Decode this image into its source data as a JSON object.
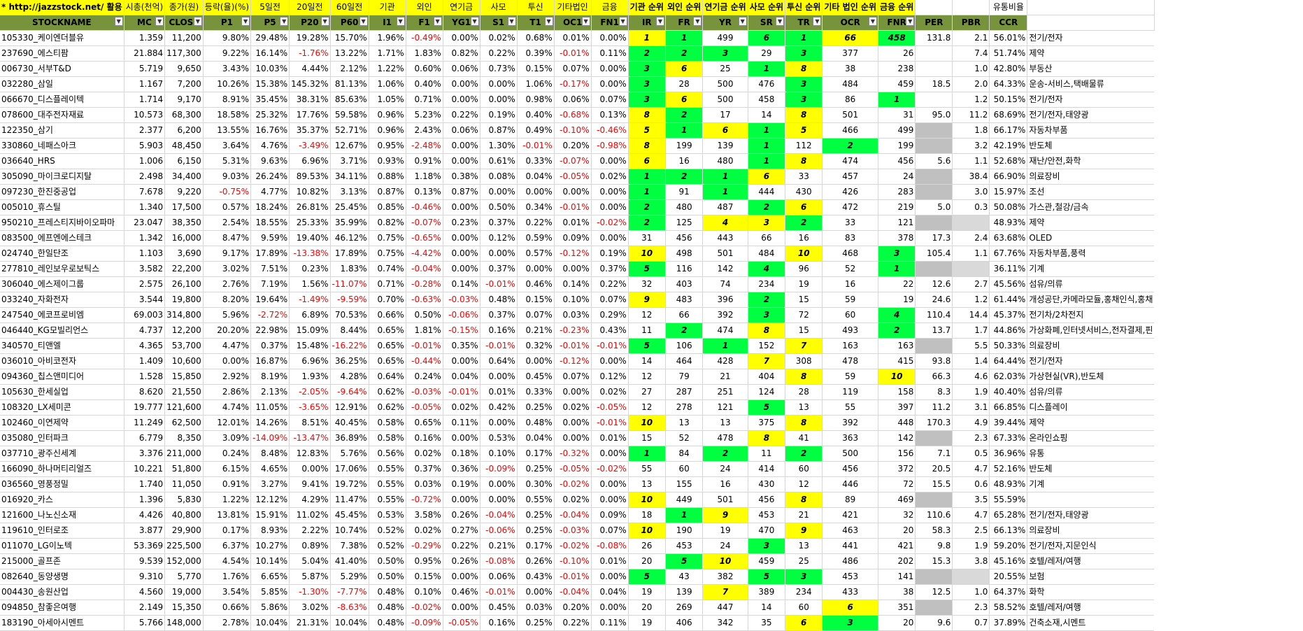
{
  "colors": {
    "header_yellow": "#ffff00",
    "header_green": "#77933c",
    "rank_yellow": "#ffff00",
    "rank_green": "#00ff40",
    "blank_gray": "#c0c0c0",
    "negative": "#ff0000"
  },
  "top_header": [
    "* http://jazzstock.net/ 활용",
    "시총(천억)",
    "종가(원)",
    "등락(율)(%)",
    "5일전",
    "20일전",
    "60일전",
    "기관",
    "외인",
    "연기금",
    "사모",
    "투신",
    "기타법인",
    "금융",
    "기관 순위",
    "외인 순위",
    "연기금 순위",
    "사모 순위",
    "투신 순위",
    "기타 법인 순위",
    "금융 순위",
    "",
    "",
    "유통비율"
  ],
  "columns": [
    "STOCKNAME",
    "MC",
    "CLOSE",
    "P1",
    "P5",
    "P20",
    "P60",
    "I1",
    "F1",
    "YG1",
    "S1",
    "T1",
    "OC1",
    "FN1",
    "IR",
    "FR",
    "YR",
    "SR",
    "TR",
    "OCR",
    "FNR",
    "PER",
    "PBR",
    "CCR",
    ""
  ],
  "rows": [
    [
      "105330_케이엔더블유",
      "1.359",
      "11,200",
      "9.80%",
      "29.48%",
      "19.28%",
      "15.70%",
      "1.96%",
      "-0.49%",
      "0.00%",
      "0.02%",
      "0.68%",
      "0.01%",
      "0.00%",
      "1",
      "1",
      "499",
      "6",
      "1",
      "66",
      "458",
      "131.8",
      "2.1",
      "56.01%",
      "전기/전자"
    ],
    [
      "237690_에스티팜",
      "21.884",
      "117,300",
      "9.22%",
      "16.14%",
      "-1.76%",
      "13.22%",
      "1.71%",
      "1.83%",
      "0.82%",
      "0.22%",
      "0.39%",
      "-0.01%",
      "0.11%",
      "2",
      "2",
      "3",
      "29",
      "3",
      "377",
      "26",
      "",
      "7.4",
      "51.74%",
      "제약"
    ],
    [
      "006730_서부T&D",
      "5.719",
      "9,650",
      "3.43%",
      "10.03%",
      "4.44%",
      "2.12%",
      "1.22%",
      "0.60%",
      "0.06%",
      "0.73%",
      "0.15%",
      "0.07%",
      "0.00%",
      "3",
      "6",
      "25",
      "1",
      "8",
      "38",
      "238",
      "",
      "1.0",
      "42.80%",
      "부동산"
    ],
    [
      "032280_삼일",
      "1.167",
      "7,200",
      "10.26%",
      "15.38%",
      "145.32%",
      "81.13%",
      "1.06%",
      "0.40%",
      "0.00%",
      "0.00%",
      "1.06%",
      "-0.17%",
      "0.00%",
      "3",
      "28",
      "500",
      "476",
      "3",
      "484",
      "459",
      "18.5",
      "2.0",
      "64.33%",
      "운송-서비스,택배물류"
    ],
    [
      "066670_디스플레이텍",
      "1.714",
      "9,170",
      "8.91%",
      "35.45%",
      "38.31%",
      "85.63%",
      "1.05%",
      "0.71%",
      "0.00%",
      "0.00%",
      "0.98%",
      "0.06%",
      "0.07%",
      "3",
      "6",
      "500",
      "458",
      "3",
      "86",
      "1",
      "",
      "1.2",
      "50.15%",
      "전기/전자"
    ],
    [
      "078600_대주전자재료",
      "10.573",
      "68,300",
      "18.58%",
      "25.32%",
      "17.76%",
      "59.58%",
      "0.96%",
      "5.23%",
      "0.22%",
      "0.19%",
      "0.40%",
      "-0.68%",
      "0.13%",
      "8",
      "2",
      "17",
      "14",
      "8",
      "501",
      "31",
      "95.0",
      "11.2",
      "68.69%",
      "전기/전자,태양광"
    ],
    [
      "122350_삼기",
      "2.377",
      "6,200",
      "13.55%",
      "16.76%",
      "35.37%",
      "52.71%",
      "0.96%",
      "2.43%",
      "0.06%",
      "0.87%",
      "0.49%",
      "-0.10%",
      "-0.46%",
      "5",
      "1",
      "6",
      "1",
      "5",
      "466",
      "499",
      "",
      "1.8",
      "66.17%",
      "자동차부품"
    ],
    [
      "330860_네패스아크",
      "5.903",
      "48,450",
      "3.64%",
      "4.76%",
      "-3.49%",
      "12.67%",
      "0.95%",
      "-2.48%",
      "0.00%",
      "1.30%",
      "-0.01%",
      "0.20%",
      "-0.98%",
      "8",
      "199",
      "139",
      "1",
      "112",
      "2",
      "199",
      "",
      "3.2",
      "42.19%",
      "반도체"
    ],
    [
      "036640_HRS",
      "1.006",
      "6,150",
      "5.31%",
      "9.63%",
      "6.96%",
      "3.71%",
      "0.93%",
      "0.91%",
      "0.00%",
      "0.61%",
      "0.33%",
      "-0.07%",
      "0.00%",
      "6",
      "16",
      "480",
      "1",
      "8",
      "474",
      "456",
      "5.6",
      "1.1",
      "52.68%",
      "재난/안전,화학"
    ],
    [
      "305090_마이크로디지탈",
      "2.498",
      "34,400",
      "9.03%",
      "26.24%",
      "89.53%",
      "34.11%",
      "0.88%",
      "1.18%",
      "0.38%",
      "0.08%",
      "0.04%",
      "-0.05%",
      "0.02%",
      "1",
      "2",
      "1",
      "6",
      "33",
      "457",
      "24",
      "",
      "38.4",
      "66.90%",
      "의료장비"
    ],
    [
      "097230_한진중공업",
      "7.678",
      "9,220",
      "-0.75%",
      "4.77%",
      "10.82%",
      "3.13%",
      "0.87%",
      "0.13%",
      "0.87%",
      "0.00%",
      "0.00%",
      "0.00%",
      "0.00%",
      "1",
      "91",
      "1",
      "444",
      "430",
      "426",
      "283",
      "",
      "3.0",
      "15.97%",
      "조선"
    ],
    [
      "005010_휴스틸",
      "1.340",
      "17,500",
      "0.57%",
      "18.24%",
      "26.81%",
      "25.45%",
      "0.85%",
      "-0.46%",
      "0.00%",
      "0.50%",
      "0.34%",
      "-0.01%",
      "0.00%",
      "2",
      "480",
      "487",
      "2",
      "6",
      "472",
      "219",
      "5.0",
      "0.3",
      "50.08%",
      "가스관,철강/금속"
    ],
    [
      "950210_프레스티지바이오파마",
      "23.047",
      "38,350",
      "2.54%",
      "18.55%",
      "25.33%",
      "35.99%",
      "0.82%",
      "-0.07%",
      "0.23%",
      "0.37%",
      "0.22%",
      "0.01%",
      "-0.02%",
      "2",
      "125",
      "4",
      "3",
      "2",
      "33",
      "121",
      "",
      "",
      "48.93%",
      "제약"
    ],
    [
      "083500_에프엔에스테크",
      "1.342",
      "16,000",
      "8.47%",
      "9.59%",
      "19.40%",
      "46.12%",
      "0.75%",
      "-0.65%",
      "0.00%",
      "0.12%",
      "0.59%",
      "0.09%",
      "0.00%",
      "31",
      "456",
      "443",
      "66",
      "16",
      "83",
      "378",
      "17.3",
      "2.4",
      "63.68%",
      "OLED"
    ],
    [
      "024740_한일단조",
      "1.103",
      "3,690",
      "9.17%",
      "17.89%",
      "-13.38%",
      "17.89%",
      "0.75%",
      "-4.42%",
      "0.00%",
      "0.00%",
      "0.57%",
      "-0.12%",
      "0.19%",
      "10",
      "498",
      "501",
      "484",
      "10",
      "468",
      "3",
      "105.4",
      "1.1",
      "67.76%",
      "자동차부품,풍력"
    ],
    [
      "277810_레인보우로보틱스",
      "3.582",
      "22,200",
      "3.02%",
      "7.51%",
      "0.23%",
      "1.83%",
      "0.74%",
      "-0.04%",
      "0.00%",
      "0.37%",
      "0.00%",
      "0.00%",
      "0.37%",
      "5",
      "116",
      "142",
      "4",
      "96",
      "52",
      "1",
      "",
      "",
      "36.11%",
      "기계"
    ],
    [
      "306040_에스제이그룹",
      "2.575",
      "26,100",
      "2.76%",
      "7.19%",
      "1.56%",
      "-11.07%",
      "0.71%",
      "-0.28%",
      "0.14%",
      "-0.01%",
      "0.46%",
      "0.14%",
      "0.22%",
      "32",
      "403",
      "74",
      "234",
      "19",
      "16",
      "22",
      "12.6",
      "2.7",
      "45.56%",
      "섬유/의류"
    ],
    [
      "033240_자화전자",
      "3.544",
      "19,800",
      "8.20%",
      "19.64%",
      "-1.49%",
      "-9.59%",
      "0.70%",
      "-0.63%",
      "-0.03%",
      "0.48%",
      "0.15%",
      "0.10%",
      "0.07%",
      "9",
      "483",
      "396",
      "2",
      "15",
      "59",
      "19",
      "24.6",
      "1.2",
      "61.44%",
      "개성공단,카메라모듈,홍채인식,홍채"
    ],
    [
      "247540_에코프로비엠",
      "69.003",
      "314,800",
      "5.96%",
      "-2.72%",
      "6.89%",
      "70.53%",
      "0.66%",
      "0.50%",
      "-0.06%",
      "0.37%",
      "0.07%",
      "0.03%",
      "0.29%",
      "12",
      "66",
      "392",
      "3",
      "72",
      "60",
      "4",
      "110.4",
      "14.4",
      "45.37%",
      "전기차/2차전지"
    ],
    [
      "046440_KG모빌리언스",
      "4.737",
      "12,200",
      "20.20%",
      "22.98%",
      "15.09%",
      "8.44%",
      "0.65%",
      "1.81%",
      "-0.15%",
      "0.16%",
      "0.21%",
      "-0.23%",
      "0.43%",
      "11",
      "2",
      "474",
      "8",
      "15",
      "493",
      "2",
      "13.7",
      "1.7",
      "44.86%",
      "가상화폐,인터넷서비스,전자결제,핀"
    ],
    [
      "340570_티앤엘",
      "4.365",
      "53,700",
      "4.47%",
      "0.37%",
      "15.48%",
      "-16.22%",
      "0.65%",
      "-0.01%",
      "0.35%",
      "-0.01%",
      "0.32%",
      "-0.01%",
      "-0.01%",
      "5",
      "106",
      "1",
      "152",
      "7",
      "163",
      "163",
      "",
      "5.5",
      "50.33%",
      "의료장비"
    ],
    [
      "036010_아비코전자",
      "1.409",
      "10,600",
      "0.00%",
      "16.87%",
      "6.96%",
      "36.25%",
      "0.65%",
      "-0.44%",
      "0.00%",
      "0.64%",
      "0.00%",
      "-0.12%",
      "0.00%",
      "14",
      "464",
      "428",
      "7",
      "308",
      "478",
      "415",
      "93.8",
      "1.4",
      "64.44%",
      "전기/전자"
    ],
    [
      "094360_칩스앤미디어",
      "1.528",
      "15,850",
      "2.92%",
      "8.19%",
      "1.93%",
      "4.28%",
      "0.64%",
      "0.24%",
      "0.04%",
      "0.00%",
      "0.45%",
      "0.07%",
      "0.12%",
      "12",
      "79",
      "21",
      "404",
      "8",
      "59",
      "10",
      "66.3",
      "4.6",
      "62.03%",
      "가상현실(VR),반도체"
    ],
    [
      "105630_한세실업",
      "8.620",
      "21,550",
      "2.86%",
      "2.13%",
      "-2.05%",
      "-9.64%",
      "0.62%",
      "-0.03%",
      "-0.01%",
      "0.01%",
      "0.33%",
      "0.00%",
      "0.02%",
      "27",
      "287",
      "251",
      "124",
      "28",
      "119",
      "158",
      "8.3",
      "1.9",
      "40.40%",
      "섬유/의류"
    ],
    [
      "108320_LX세미콘",
      "19.777",
      "121,600",
      "4.74%",
      "11.05%",
      "-3.65%",
      "12.91%",
      "0.62%",
      "-0.05%",
      "0.02%",
      "0.42%",
      "0.25%",
      "0.02%",
      "-0.05%",
      "12",
      "278",
      "121",
      "5",
      "13",
      "55",
      "397",
      "11.2",
      "3.1",
      "66.85%",
      "디스플레이"
    ],
    [
      "102460_이연제약",
      "11.249",
      "62,500",
      "12.01%",
      "14.26%",
      "8.51%",
      "40.45%",
      "0.58%",
      "0.65%",
      "0.11%",
      "0.00%",
      "0.48%",
      "0.00%",
      "-0.01%",
      "10",
      "13",
      "13",
      "375",
      "8",
      "392",
      "448",
      "170.3",
      "4.9",
      "39.44%",
      "제약"
    ],
    [
      "035080_인터파크",
      "6.779",
      "8,350",
      "3.09%",
      "-14.09%",
      "-13.47%",
      "36.89%",
      "0.58%",
      "0.16%",
      "0.00%",
      "0.53%",
      "0.04%",
      "0.00%",
      "0.01%",
      "15",
      "52",
      "478",
      "8",
      "41",
      "363",
      "142",
      "",
      "2.3",
      "67.33%",
      "온라인쇼핑"
    ],
    [
      "037710_광주신세계",
      "3.376",
      "211,000",
      "0.24%",
      "8.48%",
      "12.83%",
      "5.76%",
      "0.56%",
      "0.02%",
      "0.18%",
      "0.10%",
      "0.17%",
      "-0.32%",
      "0.00%",
      "1",
      "84",
      "2",
      "11",
      "2",
      "500",
      "156",
      "7.1",
      "0.5",
      "36.96%",
      "유통"
    ],
    [
      "166090_하나머티리얼즈",
      "10.221",
      "51,800",
      "6.15%",
      "4.65%",
      "0.00%",
      "17.06%",
      "0.55%",
      "0.37%",
      "0.36%",
      "-0.09%",
      "0.25%",
      "-0.05%",
      "-0.02%",
      "55",
      "60",
      "24",
      "414",
      "60",
      "456",
      "372",
      "20.5",
      "4.7",
      "52.16%",
      "반도체"
    ],
    [
      "036560_영풍정밀",
      "1.740",
      "11,050",
      "0.91%",
      "3.27%",
      "9.41%",
      "19.72%",
      "0.55%",
      "0.03%",
      "0.19%",
      "0.00%",
      "0.30%",
      "-0.02%",
      "0.00%",
      "13",
      "155",
      "16",
      "430",
      "12",
      "446",
      "72",
      "15.5",
      "0.6",
      "48.93%",
      "기계"
    ],
    [
      "016920_카스",
      "1.396",
      "5,830",
      "1.22%",
      "12.12%",
      "4.29%",
      "11.47%",
      "0.55%",
      "-0.72%",
      "0.00%",
      "0.00%",
      "0.55%",
      "0.02%",
      "0.00%",
      "10",
      "449",
      "501",
      "456",
      "8",
      "89",
      "469",
      "",
      "3.5",
      "55.59%",
      ""
    ],
    [
      "121600_나노신소재",
      "4.426",
      "40,800",
      "13.81%",
      "15.91%",
      "11.02%",
      "45.45%",
      "0.53%",
      "3.58%",
      "0.26%",
      "-0.04%",
      "0.25%",
      "-0.04%",
      "0.09%",
      "18",
      "1",
      "9",
      "453",
      "21",
      "421",
      "32",
      "110.6",
      "4.7",
      "65.28%",
      "전기/전자,태양광"
    ],
    [
      "119610_인터로조",
      "3.877",
      "29,900",
      "0.17%",
      "8.93%",
      "2.22%",
      "10.74%",
      "0.52%",
      "0.02%",
      "0.27%",
      "-0.06%",
      "0.25%",
      "-0.03%",
      "0.07%",
      "10",
      "190",
      "19",
      "470",
      "9",
      "463",
      "20",
      "58.3",
      "2.5",
      "66.13%",
      "의료장비"
    ],
    [
      "011070_LG이노텍",
      "53.369",
      "225,500",
      "6.37%",
      "10.27%",
      "0.89%",
      "7.38%",
      "0.52%",
      "-0.29%",
      "0.22%",
      "0.21%",
      "0.17%",
      "-0.02%",
      "-0.08%",
      "26",
      "453",
      "24",
      "3",
      "13",
      "441",
      "421",
      "9.8",
      "1.9",
      "59.20%",
      "전기/전자,지문인식"
    ],
    [
      "215000_골프존",
      "9.539",
      "152,000",
      "4.54%",
      "10.14%",
      "5.04%",
      "41.40%",
      "0.50%",
      "0.95%",
      "0.26%",
      "-0.08%",
      "0.26%",
      "-0.10%",
      "0.01%",
      "20",
      "5",
      "10",
      "459",
      "25",
      "486",
      "202",
      "15.3",
      "3.8",
      "45.16%",
      "호텔/레저/여행"
    ],
    [
      "082640_동양생명",
      "9.310",
      "5,770",
      "1.76%",
      "6.65%",
      "5.87%",
      "5.29%",
      "0.50%",
      "0.15%",
      "0.00%",
      "0.06%",
      "0.43%",
      "-0.01%",
      "0.00%",
      "5",
      "43",
      "382",
      "5",
      "3",
      "453",
      "141",
      "",
      "",
      "20.55%",
      "보험"
    ],
    [
      "004430_송원산업",
      "4.560",
      "19,000",
      "3.54%",
      "5.85%",
      "-1.30%",
      "-7.77%",
      "0.48%",
      "0.10%",
      "0.46%",
      "-0.01%",
      "0.00%",
      "-0.04%",
      "0.04%",
      "19",
      "139",
      "7",
      "389",
      "234",
      "433",
      "38",
      "12.5",
      "1.0",
      "64.37%",
      "화학"
    ],
    [
      "094850_참좋은여행",
      "2.149",
      "15,350",
      "0.66%",
      "5.86%",
      "3.02%",
      "-8.63%",
      "0.48%",
      "-0.02%",
      "0.00%",
      "0.45%",
      "0.03%",
      "0.20%",
      "0.00%",
      "20",
      "269",
      "447",
      "14",
      "60",
      "6",
      "351",
      "",
      "2.3",
      "58.52%",
      "호텔/레저/여행"
    ],
    [
      "183190_아세아시멘트",
      "5.766",
      "148,000",
      "2.78%",
      "10.04%",
      "21.31%",
      "10.04%",
      "0.48%",
      "-0.09%",
      "-0.05%",
      "0.16%",
      "0.25%",
      "0.22%",
      "0.11%",
      "19",
      "406",
      "342",
      "35",
      "6",
      "3",
      "20",
      "9.6",
      "0.7",
      "37.89%",
      "건축소재,시멘트"
    ]
  ],
  "highlights": [
    [
      "y g - g g y g - g",
      ""
    ],
    [
      "g g g - g - - g",
      ""
    ],
    [
      "g y - g y - - g",
      ""
    ],
    [
      "g - - - g - - g",
      ""
    ],
    [
      "g y - - g - g -",
      ""
    ],
    [
      "y g - - y - - -",
      ""
    ],
    [
      "y g y g y - - x",
      ""
    ],
    [
      "y - - g - g - x",
      ""
    ],
    [
      "y - - g y - - -",
      ""
    ],
    [
      "g g g y - - - x",
      ""
    ],
    [
      "g - g - - - - x",
      ""
    ],
    [
      "g - - g y - - -",
      ""
    ],
    [
      "g - y y g - - x",
      ""
    ],
    [
      "- - - - - - - -",
      ""
    ],
    [
      "y - - - y - g -",
      ""
    ],
    [
      "g - - g - - g x",
      ""
    ],
    [
      "- - - - - - - -",
      ""
    ],
    [
      "y - - g - - - -",
      ""
    ],
    [
      "- - - g - - g -",
      ""
    ],
    [
      "- g - y - - g -",
      ""
    ],
    [
      "g - g - y - - x",
      ""
    ],
    [
      "- - - y - - - -",
      ""
    ],
    [
      "- - - - y - y -",
      ""
    ],
    [
      "- - - - - - - -",
      ""
    ],
    [
      "- - - g - - - -",
      ""
    ],
    [
      "y - - - y - - -",
      ""
    ],
    [
      "- - - y - - - x",
      ""
    ],
    [
      "g - g - g - - -",
      ""
    ],
    [
      "- - - - - - - -",
      ""
    ],
    [
      "- - - - - - - -",
      ""
    ],
    [
      "y - - - y - - x",
      ""
    ],
    [
      "- g y - - - - -",
      ""
    ],
    [
      "y - - - y - - -",
      ""
    ],
    [
      "- - - g - - - -",
      ""
    ],
    [
      "- g y - - - - -",
      ""
    ],
    [
      "g - - g g - - x",
      ""
    ],
    [
      "- - y - - - - -",
      ""
    ],
    [
      "- - - - - y - x",
      ""
    ],
    [
      "- - - - y g - -",
      ""
    ]
  ]
}
